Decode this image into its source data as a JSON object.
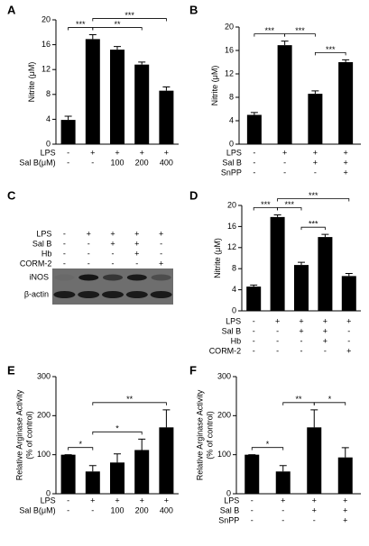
{
  "chart_data": [
    {
      "type": "bar",
      "panel": "A",
      "ylabel": [
        "Nitrite (μM)"
      ],
      "ylim": [
        0,
        20
      ],
      "yticks": [
        0,
        4,
        8,
        12,
        16,
        20
      ],
      "color": "#000000",
      "values": [
        3.9,
        16.9,
        15.2,
        12.8,
        8.6
      ],
      "errors": [
        0.6,
        0.7,
        0.5,
        0.4,
        0.6
      ],
      "annotations": [
        {
          "text": "***",
          "from": 0,
          "to": 1
        },
        {
          "text": "**",
          "from": 1,
          "to": 3
        },
        {
          "text": "***",
          "from": 1,
          "to": 4
        }
      ],
      "conditions": [
        {
          "label": "LPS",
          "values": [
            "-",
            "+",
            "+",
            "+",
            "+"
          ]
        },
        {
          "label": "Sal B(μM)",
          "values": [
            "-",
            "-",
            "100",
            "200",
            "400"
          ]
        }
      ]
    },
    {
      "type": "bar",
      "panel": "B",
      "ylabel": [
        "Nitrite (μM)"
      ],
      "ylim": [
        0,
        20
      ],
      "yticks": [
        0,
        4,
        8,
        12,
        16,
        20
      ],
      "color": "#000000",
      "values": [
        5.0,
        16.9,
        8.6,
        14.0
      ],
      "errors": [
        0.4,
        0.7,
        0.5,
        0.4
      ],
      "annotations": [
        {
          "text": "***",
          "from": 0,
          "to": 1
        },
        {
          "text": "***",
          "from": 1,
          "to": 2
        },
        {
          "text": "***",
          "from": 2,
          "to": 3
        }
      ],
      "conditions": [
        {
          "label": "LPS",
          "values": [
            "-",
            "+",
            "+",
            "+"
          ]
        },
        {
          "label": "Sal B",
          "values": [
            "-",
            "-",
            "+",
            "+"
          ]
        },
        {
          "label": "SnPP",
          "values": [
            "-",
            "-",
            "-",
            "+"
          ]
        }
      ]
    },
    {
      "type": "blot",
      "panel": "C",
      "conditions": [
        {
          "label": "LPS",
          "values": [
            "-",
            "+",
            "+",
            "+",
            "+"
          ]
        },
        {
          "label": "Sal B",
          "values": [
            "-",
            "-",
            "+",
            "+",
            "-"
          ]
        },
        {
          "label": "Hb",
          "values": [
            "-",
            "-",
            "-",
            "+",
            "-"
          ]
        },
        {
          "label": "CORM-2",
          "values": [
            "-",
            "-",
            "-",
            "-",
            "+"
          ]
        }
      ],
      "band_labels": [
        "iNOS",
        "β-actin"
      ]
    },
    {
      "type": "bar",
      "panel": "D",
      "ylabel": [
        "Nitrite (μM)"
      ],
      "ylim": [
        0,
        20
      ],
      "yticks": [
        0,
        4,
        8,
        12,
        16,
        20
      ],
      "color": "#000000",
      "values": [
        4.6,
        17.8,
        8.7,
        14.0,
        6.6
      ],
      "errors": [
        0.3,
        0.4,
        0.5,
        0.5,
        0.5
      ],
      "annotations": [
        {
          "text": "***",
          "from": 0,
          "to": 1
        },
        {
          "text": "***",
          "from": 1,
          "to": 2
        },
        {
          "text": "***",
          "from": 2,
          "to": 3
        },
        {
          "text": "***",
          "from": 1,
          "to": 4
        }
      ],
      "conditions": [
        {
          "label": "LPS",
          "values": [
            "-",
            "+",
            "+",
            "+",
            "+"
          ]
        },
        {
          "label": "Sal B",
          "values": [
            "-",
            "-",
            "+",
            "+",
            "-"
          ]
        },
        {
          "label": "Hb",
          "values": [
            "-",
            "-",
            "-",
            "+",
            "-"
          ]
        },
        {
          "label": "CORM-2",
          "values": [
            "-",
            "-",
            "-",
            "-",
            "+"
          ]
        }
      ]
    },
    {
      "type": "bar",
      "panel": "E",
      "ylabel": [
        "Relative Arginase Activity",
        "(% of control)"
      ],
      "ylim": [
        0,
        300
      ],
      "yticks": [
        0,
        100,
        200,
        300
      ],
      "color": "#000000",
      "values": [
        100,
        57,
        80,
        112,
        170
      ],
      "errors": [
        0,
        15,
        22,
        28,
        45
      ],
      "annotations": [
        {
          "text": "*",
          "from": 0,
          "to": 1
        },
        {
          "text": "*",
          "from": 1,
          "to": 3
        },
        {
          "text": "**",
          "from": 1,
          "to": 4
        }
      ],
      "conditions": [
        {
          "label": "LPS",
          "values": [
            "-",
            "+",
            "+",
            "+",
            "+"
          ]
        },
        {
          "label": "Sal B(μM)",
          "values": [
            "-",
            "-",
            "100",
            "200",
            "400"
          ]
        }
      ]
    },
    {
      "type": "bar",
      "panel": "F",
      "ylabel": [
        "Relative Arginase Activity",
        "(% of control)"
      ],
      "ylim": [
        0,
        300
      ],
      "yticks": [
        0,
        100,
        200,
        300
      ],
      "color": "#000000",
      "values": [
        100,
        57,
        170,
        93
      ],
      "errors": [
        0,
        15,
        45,
        25
      ],
      "annotations": [
        {
          "text": "*",
          "from": 0,
          "to": 1
        },
        {
          "text": "**",
          "from": 1,
          "to": 2
        },
        {
          "text": "*",
          "from": 2,
          "to": 3
        }
      ],
      "conditions": [
        {
          "label": "LPS",
          "values": [
            "-",
            "+",
            "+",
            "+"
          ]
        },
        {
          "label": "Sal B",
          "values": [
            "-",
            "-",
            "+",
            "+"
          ]
        },
        {
          "label": "SnPP",
          "values": [
            "-",
            "-",
            "-",
            "+"
          ]
        }
      ]
    }
  ]
}
